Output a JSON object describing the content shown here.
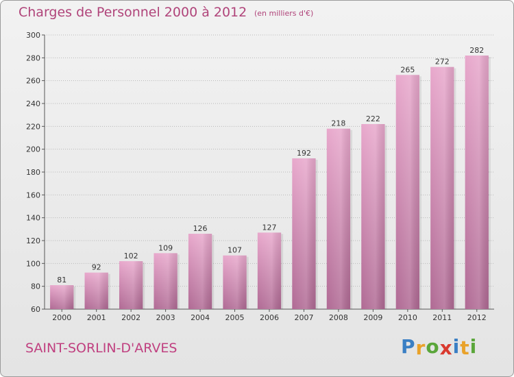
{
  "title": "Charges de Personnel 2000 à 2012",
  "subtitle": "(en milliers d'€)",
  "commune": "SAINT-SORLIN-D'ARVES",
  "logo": {
    "text": "Proxiti",
    "letters": [
      {
        "ch": "P",
        "color": "#3a7fc4"
      },
      {
        "ch": "r",
        "color": "#e9a22a"
      },
      {
        "ch": "o",
        "color": "#5aa63a"
      },
      {
        "ch": "x",
        "color": "#d93a2f"
      },
      {
        "ch": "i",
        "color": "#3a7fc4"
      },
      {
        "ch": "t",
        "color": "#e9a22a"
      },
      {
        "ch": "i",
        "color": "#5aa63a"
      }
    ]
  },
  "colors": {
    "bar_light": "#e8a8cc",
    "bar_dark": "#b06a94",
    "title": "#b0447a"
  },
  "chart_data": {
    "type": "bar",
    "title": "Charges de Personnel 2000 à 2012",
    "subtitle": "(en milliers d'€)",
    "categories": [
      "2000",
      "2001",
      "2002",
      "2003",
      "2004",
      "2005",
      "2006",
      "2007",
      "2008",
      "2009",
      "2010",
      "2011",
      "2012"
    ],
    "values": [
      81,
      92,
      102,
      109,
      126,
      107,
      127,
      192,
      218,
      222,
      265,
      272,
      282
    ],
    "ylim": [
      60,
      300
    ],
    "yticks": [
      60,
      80,
      100,
      120,
      140,
      160,
      180,
      200,
      220,
      240,
      260,
      280,
      300
    ],
    "grid": true,
    "xlabel": "",
    "ylabel": ""
  }
}
